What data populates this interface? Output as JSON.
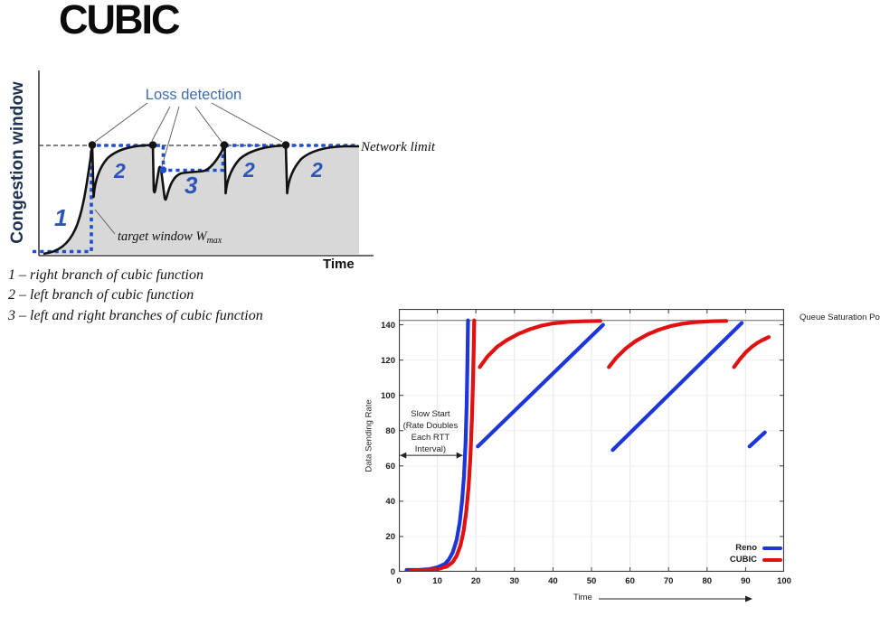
{
  "slide": {
    "title": "CUBIC"
  },
  "diagram": {
    "y_axis_label": "Congestion window",
    "x_axis_label": "Time",
    "loss_detection_label": "Loss detection",
    "network_limit_label": "Network limit",
    "target_window_label": "target window W",
    "target_window_subscript": "max",
    "region_labels": {
      "r1": "1",
      "r2a": "2",
      "r3": "3",
      "r2b": "2",
      "r2c": "2"
    },
    "caption_lines": [
      "1 – right branch of cubic function",
      "2 – left branch of cubic function",
      "3 – left and right branches of cubic function"
    ],
    "colors": {
      "trace_blue": "#1e4fd0",
      "label_blue": "#3f6cae",
      "number_blue": "#2c55b8",
      "fill_gray": "#d8d8d8"
    }
  },
  "chart_data": {
    "type": "line",
    "title": "",
    "xlabel": "Time",
    "ylabel": "Data Sending Rate",
    "xlim": [
      0,
      100
    ],
    "ylim": [
      0,
      149
    ],
    "x_ticks": [
      0,
      10,
      20,
      30,
      40,
      50,
      60,
      70,
      80,
      90,
      100
    ],
    "y_ticks": [
      0,
      20,
      40,
      60,
      80,
      100,
      120,
      140
    ],
    "grid": true,
    "saturation_line": {
      "y": 142.5,
      "label": "Queue Saturation Point"
    },
    "annotation": {
      "lines": [
        "Slow Start",
        "(Rate Doubles",
        "Each RTT",
        "Interval)"
      ],
      "center_x_value": 8.2,
      "top_y_value": 88,
      "arrow": {
        "x1": 0.3,
        "x2": 16.6,
        "y": 66
      }
    },
    "legend": {
      "position": "bottom-right",
      "items": [
        {
          "name": "Reno",
          "color": "#1c36d9"
        },
        {
          "name": "CUBIC",
          "color": "#e01111"
        }
      ]
    },
    "series": [
      {
        "name": "Reno",
        "color": "#1c36d9",
        "segments": [
          [
            [
              2,
              1
            ],
            [
              5,
              1
            ],
            [
              8,
              1.5
            ],
            [
              10,
              2.5
            ],
            [
              12,
              4.5
            ],
            [
              13,
              7
            ],
            [
              14,
              11
            ],
            [
              15,
              18
            ],
            [
              15.8,
              28
            ],
            [
              16.4,
              40
            ],
            [
              16.9,
              54
            ],
            [
              17.3,
              72
            ],
            [
              17.6,
              95
            ],
            [
              17.8,
              118
            ],
            [
              17.95,
              142.5
            ]
          ],
          [
            [
              20.5,
              71
            ],
            [
              53,
              140
            ]
          ],
          [
            [
              55.5,
              69
            ],
            [
              89,
              141
            ]
          ],
          [
            [
              91,
              71
            ],
            [
              95,
              79
            ]
          ]
        ]
      },
      {
        "name": "CUBIC",
        "color": "#e01111",
        "segments": [
          [
            [
              3,
              0.5
            ],
            [
              7,
              1
            ],
            [
              10,
              1.5
            ],
            [
              12.5,
              3
            ],
            [
              14,
              5.5
            ],
            [
              15,
              9
            ],
            [
              16,
              15
            ],
            [
              16.8,
              23
            ],
            [
              17.5,
              34
            ],
            [
              18.1,
              48
            ],
            [
              18.6,
              66
            ],
            [
              19,
              88
            ],
            [
              19.3,
              112
            ],
            [
              19.5,
              135
            ],
            [
              19.55,
              142.5
            ]
          ],
          [
            [
              21,
              116
            ],
            [
              23,
              122
            ],
            [
              25.5,
              127.5
            ],
            [
              28,
              131.3
            ],
            [
              31,
              134.8
            ],
            [
              34,
              137.5
            ],
            [
              37,
              139.5
            ],
            [
              40,
              140.8
            ],
            [
              44,
              141.7
            ],
            [
              48,
              142
            ],
            [
              52.3,
              142.2
            ]
          ],
          [
            [
              54.5,
              116
            ],
            [
              56.5,
              121.5
            ],
            [
              59,
              126.8
            ],
            [
              61.5,
              130.8
            ],
            [
              64.5,
              134.5
            ],
            [
              67.5,
              137.2
            ],
            [
              70.5,
              139.2
            ],
            [
              73.5,
              140.6
            ],
            [
              77,
              141.5
            ],
            [
              81,
              142
            ],
            [
              85,
              142.2
            ]
          ],
          [
            [
              87,
              116
            ],
            [
              88.5,
              120.5
            ],
            [
              90,
              124.3
            ],
            [
              91.5,
              127.3
            ],
            [
              93,
              129.7
            ],
            [
              94.5,
              131.5
            ],
            [
              96,
              133
            ]
          ]
        ]
      }
    ]
  }
}
